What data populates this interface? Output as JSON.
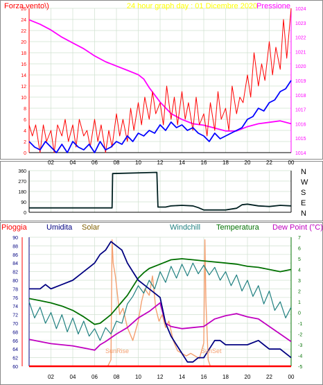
{
  "header": {
    "left_label": "Forza vento\\)",
    "center_title": "24 hour graph day : 01 Dicembre 2020",
    "right_label": "Pressione"
  },
  "colors": {
    "wind_gust": "#ff0000",
    "wind_avg": "#0000ff",
    "pressure": "#ff00ff",
    "title": "#ffff00",
    "direction": "#002020",
    "umidita": "#000080",
    "solar": "#806000",
    "windchill": "#208080",
    "temperatura": "#007000",
    "dewpoint": "#c000c0",
    "pioggia": "#ff0000",
    "solar_curve": "#f4a070",
    "grid": "#cfe0cf",
    "axis": "#000000"
  },
  "chart_data": [
    {
      "type": "line",
      "name": "wind-pressure",
      "title": "24 hour graph day : 01 Dicembre 2020",
      "x_ticks": [
        "02",
        "04",
        "06",
        "08",
        "10",
        "12",
        "14",
        "16",
        "18",
        "20",
        "22",
        "00"
      ],
      "xlim": [
        0,
        24
      ],
      "ylim_left": [
        0,
        26
      ],
      "y_ticks_left": [
        0,
        2,
        4,
        6,
        8,
        10,
        12,
        14,
        16,
        18,
        20,
        22,
        24,
        26
      ],
      "ylim_right": [
        1014,
        1024
      ],
      "y_ticks_right": [
        1014,
        1015,
        1016,
        1017,
        1018,
        1019,
        1020,
        1021,
        1022,
        1023,
        1024
      ],
      "series": [
        {
          "name": "Pressione",
          "axis": "right",
          "x": [
            0,
            1,
            2,
            3,
            4,
            5,
            6,
            7,
            8,
            9,
            10,
            10.5,
            11,
            12,
            13,
            14,
            15,
            16,
            17,
            18,
            19,
            20,
            21,
            22,
            23,
            24
          ],
          "values": [
            1023.2,
            1022.9,
            1022.5,
            1022.0,
            1021.6,
            1021.2,
            1020.7,
            1020.3,
            1020.0,
            1019.7,
            1019.4,
            1019.1,
            1018.5,
            1017.5,
            1016.7,
            1016.3,
            1016.0,
            1015.9,
            1015.7,
            1015.5,
            1015.5,
            1015.8,
            1016.0,
            1016.1,
            1016.2,
            1016.0
          ]
        },
        {
          "name": "Raffica",
          "axis": "left",
          "x": [
            0,
            0.3,
            0.6,
            1,
            1.3,
            1.6,
            2,
            2.3,
            2.6,
            3,
            3.3,
            3.6,
            4,
            4.3,
            4.6,
            5,
            5.3,
            5.6,
            6,
            6.3,
            6.6,
            7,
            7.3,
            7.6,
            8,
            8.3,
            8.6,
            9,
            9.3,
            9.6,
            10,
            10.3,
            10.6,
            11,
            11.3,
            11.6,
            12,
            12.3,
            12.6,
            13,
            13.3,
            13.6,
            14,
            14.3,
            14.6,
            15,
            15.3,
            15.6,
            16,
            16.3,
            16.6,
            17,
            17.3,
            17.6,
            18,
            18.3,
            18.6,
            19,
            19.3,
            19.6,
            20,
            20.3,
            20.6,
            21,
            21.3,
            21.6,
            22,
            22.3,
            22.6,
            23,
            23.3,
            23.6,
            24
          ],
          "values": [
            5,
            3,
            5,
            0,
            5,
            2,
            4,
            0,
            5,
            3,
            6,
            2,
            5,
            1,
            6,
            3,
            4,
            1,
            6,
            2,
            5,
            0,
            4,
            1,
            7,
            3,
            6,
            2,
            8,
            4,
            9,
            5,
            10,
            6,
            11,
            7,
            9,
            5,
            12,
            6,
            10,
            5,
            11,
            6,
            9,
            4,
            10,
            5,
            7,
            3,
            9,
            4,
            11,
            6,
            8,
            4,
            12,
            7,
            10,
            9,
            14,
            10,
            18,
            12,
            16,
            13,
            20,
            14,
            19,
            15,
            24,
            17,
            26
          ]
        },
        {
          "name": "Vento medio",
          "axis": "left",
          "x": [
            0,
            0.5,
            1,
            1.5,
            2,
            2.5,
            3,
            3.5,
            4,
            4.5,
            5,
            5.5,
            6,
            6.5,
            7,
            7.5,
            8,
            8.5,
            9,
            9.5,
            10,
            10.5,
            11,
            11.5,
            12,
            12.5,
            13,
            13.5,
            14,
            14.5,
            15,
            15.5,
            16,
            16.5,
            17,
            17.5,
            18,
            18.5,
            19,
            19.5,
            20,
            20.5,
            21,
            21.5,
            22,
            22.5,
            23,
            23.5,
            24
          ],
          "values": [
            2,
            1,
            0.5,
            2,
            1,
            0,
            1.5,
            0,
            2,
            1,
            0.5,
            1.5,
            0,
            2,
            0.5,
            1,
            2,
            1.5,
            3,
            2,
            3.5,
            3,
            4,
            3.5,
            5,
            4,
            5.5,
            4.5,
            5,
            4,
            4.5,
            3.5,
            3,
            2,
            3.5,
            2.5,
            3,
            3.5,
            4,
            4.5,
            6,
            6.5,
            8,
            7.5,
            9,
            9.5,
            11,
            11.5,
            13
          ]
        }
      ]
    },
    {
      "type": "line",
      "name": "wind-direction",
      "y_ticks": [
        "360",
        "270",
        "180",
        "90",
        "0"
      ],
      "ylim": [
        0,
        360
      ],
      "y_ticks_right": [
        "N",
        "W",
        "S",
        "E",
        "N"
      ],
      "x": [
        0,
        7.6,
        7.65,
        11.7,
        11.8,
        12.5,
        13,
        14,
        15,
        15.5,
        16,
        17,
        18,
        19,
        19.5,
        20,
        21,
        22,
        23,
        24
      ],
      "values": [
        38,
        38,
        335,
        345,
        45,
        45,
        55,
        60,
        55,
        40,
        20,
        20,
        20,
        35,
        65,
        70,
        55,
        50,
        60,
        55
      ]
    },
    {
      "type": "line",
      "name": "humidity-temperature",
      "x_ticks": [
        "02",
        "04",
        "06",
        "08",
        "10",
        "12",
        "14",
        "16",
        "18",
        "20",
        "22",
        "00"
      ],
      "xlim": [
        0,
        24
      ],
      "ylim_left": [
        60,
        90
      ],
      "y_ticks_left": [
        60,
        62,
        64,
        66,
        68,
        70,
        72,
        74,
        76,
        78,
        80,
        82,
        84,
        86,
        88,
        90
      ],
      "ylim_right": [
        -5,
        7
      ],
      "y_ticks_right": [
        -5,
        -4,
        -3,
        -2,
        -1,
        0,
        1,
        2,
        3,
        4,
        5,
        6,
        7
      ],
      "labels": {
        "pioggia": "Pioggia",
        "umidita": "Umidita",
        "solar": "Solar",
        "windchill": "Windchill",
        "temperatura": "Temperatura",
        "dewpoint": "Dew Point (°C)"
      },
      "annotations": {
        "sunrise": "SunRise",
        "sunset": "SunSet"
      },
      "series": [
        {
          "name": "Umidita",
          "axis": "left",
          "x": [
            0,
            1,
            1.5,
            2,
            3,
            4,
            4.5,
            5,
            5.5,
            6,
            6.5,
            7,
            7.5,
            8,
            8.5,
            9,
            9.5,
            10,
            10.5,
            11,
            11.5,
            12,
            12.5,
            13,
            13.5,
            14,
            14.5,
            15,
            15.5,
            16,
            16.5,
            17,
            17.5,
            18,
            19,
            20,
            21,
            21.5,
            22,
            23,
            24
          ],
          "values": [
            78,
            78,
            79,
            78,
            79,
            80,
            81,
            82,
            83,
            84,
            86,
            87,
            89,
            88,
            87,
            84,
            82,
            80,
            79,
            78,
            77,
            76,
            70,
            67,
            65,
            63,
            61,
            61,
            62,
            62,
            64,
            66,
            66,
            65,
            65,
            65,
            66,
            65,
            64,
            64,
            62
          ]
        },
        {
          "name": "Temperatura",
          "axis": "right",
          "x": [
            0,
            1,
            2,
            3,
            4,
            5,
            6,
            6.5,
            7,
            7.5,
            8,
            8.5,
            9,
            9.5,
            10,
            10.5,
            11,
            12,
            13,
            14,
            15,
            16,
            17,
            18,
            19,
            20,
            21,
            22,
            23,
            24
          ],
          "values": [
            1.3,
            1.1,
            0.9,
            0.6,
            0.2,
            -0.4,
            -1.1,
            -1.0,
            -0.6,
            -0.2,
            0.4,
            1.0,
            1.6,
            2.4,
            3.2,
            3.7,
            4.1,
            4.5,
            4.9,
            5.0,
            4.9,
            4.8,
            4.7,
            4.6,
            4.5,
            4.3,
            4.2,
            4.0,
            3.8,
            4.0
          ]
        },
        {
          "name": "Windchill",
          "axis": "right",
          "x": [
            0,
            0.5,
            1,
            1.5,
            2,
            2.5,
            3,
            3.5,
            4,
            4.5,
            5,
            5.5,
            6,
            6.5,
            7,
            7.5,
            8,
            8.5,
            9,
            9.5,
            10,
            10.5,
            11,
            11.5,
            12,
            12.5,
            13,
            13.5,
            14,
            14.5,
            15,
            15.5,
            16,
            16.5,
            17,
            17.5,
            18,
            18.5,
            19,
            19.5,
            20,
            20.5,
            21,
            21.5,
            22,
            22.5,
            23,
            23.5,
            24
          ],
          "values": [
            1.0,
            -0.5,
            0.5,
            -1.0,
            0,
            -1.5,
            -0.2,
            -1.8,
            -0.5,
            -2.0,
            -0.8,
            -2.2,
            -1.5,
            -2.6,
            -1.4,
            -2.0,
            -0.8,
            -1.0,
            0.8,
            1.5,
            2.5,
            1.8,
            3.0,
            2.2,
            3.8,
            2.8,
            4.3,
            3.2,
            4.5,
            3.4,
            4.6,
            3.6,
            4.4,
            3.5,
            4.2,
            3.0,
            3.8,
            2.5,
            3.5,
            2.0,
            3.0,
            1.5,
            2.5,
            0.8,
            2.0,
            0.2,
            1.0,
            -0.5,
            0.5
          ]
        },
        {
          "name": "Dew Point",
          "axis": "right",
          "x": [
            0,
            1,
            2,
            3,
            4,
            5,
            6,
            6.5,
            7,
            8,
            9,
            10,
            11,
            12,
            12.5,
            13,
            14,
            15,
            16,
            17,
            18,
            19,
            20,
            21,
            22,
            23,
            24
          ],
          "values": [
            -2.5,
            -2.7,
            -2.9,
            -3.0,
            -3.1,
            -3.3,
            -3.5,
            -3.0,
            -2.7,
            -2.0,
            -1.4,
            -0.5,
            0.1,
            0.9,
            -1.0,
            -1.3,
            -1.5,
            -1.4,
            -1.3,
            -0.6,
            -0.3,
            -0.1,
            -0.4,
            -0.6,
            -1.3,
            -2.0,
            -2.7
          ]
        },
        {
          "name": "Solar",
          "axis": "solar",
          "x": [
            7.2,
            7.5,
            7.6,
            7.7,
            7.9,
            8.1,
            8.3,
            8.6,
            9,
            9.5,
            10,
            10.3,
            10.6,
            11,
            11.3,
            11.6,
            11.9,
            12.2,
            12.5,
            12.8,
            13.2,
            13.6,
            14,
            14.4,
            14.8,
            15.2,
            15.6,
            16,
            16.1,
            16.2,
            16.4,
            16.6
          ],
          "values": [
            0,
            5,
            98,
            80,
            70,
            55,
            40,
            45,
            30,
            20,
            35,
            50,
            60,
            55,
            70,
            45,
            35,
            40,
            30,
            35,
            20,
            12,
            10,
            8,
            10,
            8,
            6,
            18,
            98,
            50,
            5,
            0
          ]
        },
        {
          "name": "Pioggia",
          "axis": "left",
          "x": [
            0,
            24
          ],
          "values": [
            60,
            60
          ]
        }
      ]
    }
  ]
}
